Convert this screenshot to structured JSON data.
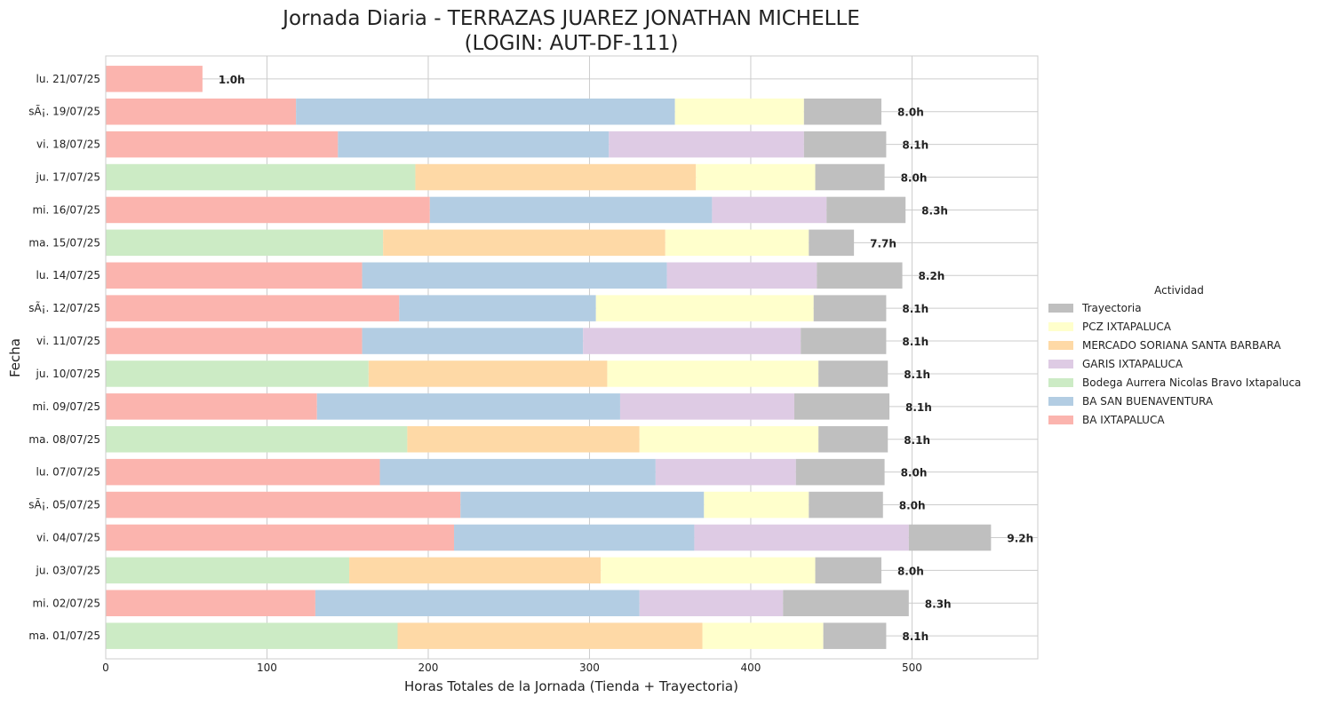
{
  "chart_data": {
    "type": "bar",
    "orientation": "horizontal",
    "stacked": true,
    "title": "Jornada Diaria - TERRAZAS JUAREZ JONATHAN MICHELLE",
    "subtitle": "(LOGIN: AUT-DF-111)",
    "xlabel": "Horas Totales de la Jornada (Tienda + Trayectoria)",
    "ylabel": "Fecha",
    "xlim": [
      0,
      578
    ],
    "xticks": [
      0,
      100,
      200,
      300,
      400,
      500
    ],
    "grid": true,
    "legend_title": "Actividad",
    "legend_position": "center-right",
    "categories": [
      "ma. 01/07/25",
      "mi. 02/07/25",
      "ju. 03/07/25",
      "vi. 04/07/25",
      "sÃ¡. 05/07/25",
      "lu. 07/07/25",
      "ma. 08/07/25",
      "mi. 09/07/25",
      "ju. 10/07/25",
      "vi. 11/07/25",
      "sÃ¡. 12/07/25",
      "lu. 14/07/25",
      "ma. 15/07/25",
      "mi. 16/07/25",
      "ju. 17/07/25",
      "vi. 18/07/25",
      "sÃ¡. 19/07/25",
      "lu. 21/07/25"
    ],
    "series": [
      {
        "name": "BA IXTAPALUCA",
        "color": "#fbb4ae",
        "values": [
          0,
          130,
          0,
          216,
          220,
          170,
          0,
          131,
          0,
          159,
          182,
          159,
          0,
          201,
          0,
          144,
          118,
          60
        ]
      },
      {
        "name": "BA SAN BUENAVENTURA",
        "color": "#b3cde3",
        "values": [
          0,
          201,
          0,
          149,
          151,
          171,
          0,
          188,
          0,
          137,
          122,
          189,
          0,
          175,
          0,
          168,
          235,
          0
        ]
      },
      {
        "name": "Bodega Aurrera Nicolas Bravo Ixtapaluca",
        "color": "#ccebc5",
        "values": [
          181,
          0,
          151,
          0,
          0,
          0,
          187,
          0,
          163,
          0,
          0,
          0,
          172,
          0,
          192,
          0,
          0,
          0
        ]
      },
      {
        "name": "GARIS IXTAPALUCA",
        "color": "#decbe4",
        "values": [
          0,
          89,
          0,
          133,
          0,
          87,
          0,
          108,
          0,
          135,
          0,
          93,
          0,
          71,
          0,
          121,
          0,
          0
        ]
      },
      {
        "name": "MERCADO SORIANA SANTA BARBARA",
        "color": "#fed9a6",
        "values": [
          189,
          0,
          156,
          0,
          0,
          0,
          144,
          0,
          148,
          0,
          0,
          0,
          175,
          0,
          174,
          0,
          0,
          0
        ]
      },
      {
        "name": "PCZ IXTAPALUCA",
        "color": "#ffffcc",
        "values": [
          75,
          0,
          133,
          0,
          65,
          0,
          111,
          0,
          131,
          0,
          135,
          0,
          89,
          0,
          74,
          0,
          80,
          0
        ]
      },
      {
        "name": "Trayectoria",
        "color": "#bfbfbf",
        "values": [
          39,
          78,
          41,
          51,
          46,
          55,
          43,
          59,
          43,
          53,
          45,
          53,
          28,
          49,
          43,
          51,
          48,
          0
        ]
      }
    ],
    "legend_order": [
      "Trayectoria",
      "PCZ IXTAPALUCA",
      "MERCADO SORIANA SANTA BARBARA",
      "GARIS IXTAPALUCA",
      "Bodega Aurrera Nicolas Bravo Ixtapaluca",
      "BA SAN BUENAVENTURA",
      "BA IXTAPALUCA"
    ],
    "total_labels": [
      "8.1h",
      "8.3h",
      "8.0h",
      "9.2h",
      "8.0h",
      "8.0h",
      "8.1h",
      "8.1h",
      "8.1h",
      "8.1h",
      "8.1h",
      "8.2h",
      "7.7h",
      "8.3h",
      "8.0h",
      "8.1h",
      "8.0h",
      "1.0h"
    ]
  }
}
